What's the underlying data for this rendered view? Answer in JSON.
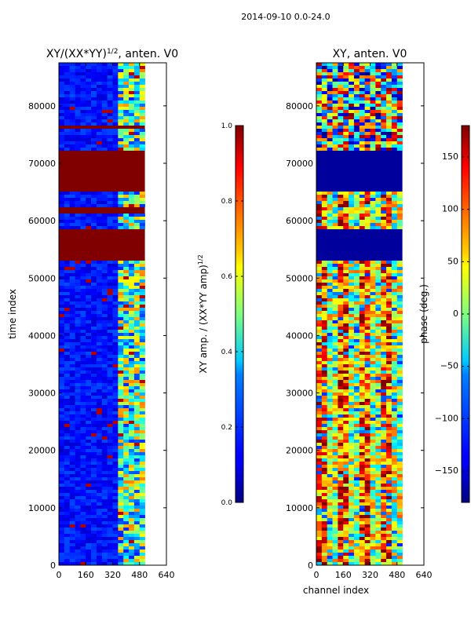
{
  "figure": {
    "suptitle": "2014-09-10 0.0-24.0"
  },
  "chart_data": [
    {
      "type": "heatmap",
      "title": "XY/(XX*YY)^(1/2), anten. V0",
      "title_main": "XY/(XX*YY)",
      "title_sup": "1/2",
      "title_tail": ", anten. V0",
      "xlabel": "",
      "ylabel": "time index",
      "xlim": [
        0,
        640
      ],
      "ylim": [
        0,
        87500
      ],
      "data_extent_x": [
        0,
        512
      ],
      "xticks": [
        0,
        160,
        320,
        480,
        640
      ],
      "yticks": [
        0,
        10000,
        20000,
        30000,
        40000,
        50000,
        60000,
        70000,
        80000
      ],
      "colorbar": {
        "label": "XY amp. / (XX*YY amp)^(1/2)",
        "label_main": "XY amp. / (XX*YY amp)",
        "label_sup": "1/2",
        "range": [
          0.0,
          1.0
        ],
        "ticks": [
          "0.0",
          "0.2",
          "0.4",
          "0.6",
          "0.8",
          "1.0"
        ],
        "tick_values": [
          0.0,
          0.2,
          0.4,
          0.6,
          0.8,
          1.0
        ]
      },
      "bands": [
        {
          "y0": 52800,
          "y1": 58500,
          "value": 1.0
        },
        {
          "y0": 61300,
          "y1": 62300,
          "value": 1.0
        },
        {
          "y0": 65000,
          "y1": 72200,
          "value": 1.0
        },
        {
          "y0": 76000,
          "y1": 76500,
          "value": 1.0
        },
        {
          "y0": 85200,
          "y1": 85500,
          "value": 1.0
        }
      ]
    },
    {
      "type": "heatmap",
      "title": "XY, anten. V0",
      "xlabel": "channel index",
      "ylabel": "",
      "xlim": [
        0,
        640
      ],
      "ylim": [
        0,
        87500
      ],
      "data_extent_x": [
        0,
        512
      ],
      "xticks": [
        0,
        160,
        320,
        480,
        640
      ],
      "yticks": [
        0,
        10000,
        20000,
        30000,
        40000,
        50000,
        60000,
        70000,
        80000
      ],
      "colorbar": {
        "label": "phase (deg.)",
        "range": [
          -180,
          180
        ],
        "ticks": [
          "150",
          "100",
          "50",
          "0",
          "−50",
          "−100",
          "−150"
        ],
        "tick_values": [
          150,
          100,
          50,
          0,
          -50,
          -100,
          -150
        ]
      },
      "bands": [
        {
          "y0": 52800,
          "y1": 58500,
          "value": -170
        },
        {
          "y0": 65000,
          "y1": 72200,
          "value": -170
        }
      ]
    }
  ],
  "colors": {
    "jet_low": "#00007f",
    "jet_high": "#7f0000"
  }
}
